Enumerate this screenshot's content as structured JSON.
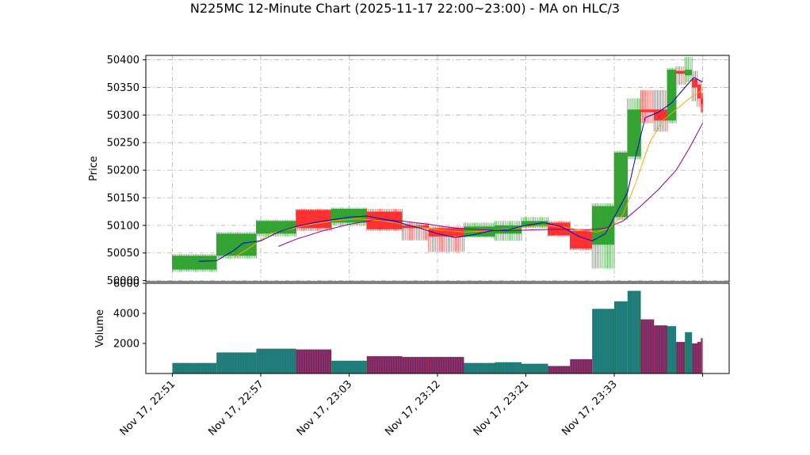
{
  "chart_data": {
    "type": "candlestick",
    "title": "N225MC 12-Minute Chart (2025-11-17 22:00~23:00) - MA on HLC/3",
    "price_panel": {
      "ylabel": "Price",
      "ylim": [
        49998,
        50408
      ],
      "yticks": [
        50000,
        50050,
        50100,
        50150,
        50200,
        50250,
        50300,
        50350,
        50400
      ],
      "grid": true
    },
    "volume_panel": {
      "ylabel": "Volume",
      "ylim": [
        0,
        6000
      ],
      "yticks": [
        2000,
        4000,
        6000
      ],
      "grid": false
    },
    "xlim": [
      -3,
      63
    ],
    "xticks": [
      {
        "pos": 0,
        "label": "Nov 17, 22:51"
      },
      {
        "pos": 10,
        "label": "Nov 17, 22:57"
      },
      {
        "pos": 20,
        "label": "Nov 17, 23:03"
      },
      {
        "pos": 30,
        "label": "Nov 17, 23:12"
      },
      {
        "pos": 40,
        "label": "Nov 17, 23:21"
      },
      {
        "pos": 50,
        "label": "Nov 17, 23:33"
      },
      {
        "pos": 60,
        "label": ""
      }
    ],
    "colors": {
      "up": "#2ca02c",
      "down": "#ff2a2a",
      "ma_short": "#0000cc",
      "ma_mid": "#ffa500",
      "ma_long": "#8b008b",
      "vol_up": "#1a7f6a",
      "vol_down": "#8b2252",
      "vol_stripe": "#4a6fd8"
    },
    "candles": [
      {
        "x0": 0,
        "x1": 5,
        "o": 50020,
        "h": 50048,
        "l": 50016,
        "c": 50045,
        "v": 700
      },
      {
        "x0": 5,
        "x1": 9.5,
        "o": 50045,
        "h": 50088,
        "l": 50040,
        "c": 50085,
        "v": 1400
      },
      {
        "x0": 9.5,
        "x1": 14,
        "o": 50085,
        "h": 50110,
        "l": 50080,
        "c": 50108,
        "v": 1650
      },
      {
        "x0": 14,
        "x1": 18,
        "o": 50128,
        "h": 50130,
        "l": 50090,
        "c": 50095,
        "v": 1600
      },
      {
        "x0": 18,
        "x1": 22,
        "o": 50105,
        "h": 50132,
        "l": 50100,
        "c": 50130,
        "v": 850
      },
      {
        "x0": 22,
        "x1": 26,
        "o": 50125,
        "h": 50130,
        "l": 50090,
        "c": 50093,
        "v": 1150
      },
      {
        "x0": 26,
        "x1": 29,
        "o": 50100,
        "h": 50105,
        "l": 50073,
        "c": 50095,
        "v": 1100
      },
      {
        "x0": 29,
        "x1": 33,
        "o": 50095,
        "h": 50098,
        "l": 50052,
        "c": 50080,
        "v": 1100
      },
      {
        "x0": 33,
        "x1": 36.5,
        "o": 50080,
        "h": 50105,
        "l": 50078,
        "c": 50098,
        "v": 700
      },
      {
        "x0": 36.5,
        "x1": 39.5,
        "o": 50085,
        "h": 50108,
        "l": 50072,
        "c": 50100,
        "v": 750
      },
      {
        "x0": 39.5,
        "x1": 42.5,
        "o": 50098,
        "h": 50115,
        "l": 50095,
        "c": 50108,
        "v": 650
      },
      {
        "x0": 42.5,
        "x1": 45,
        "o": 50105,
        "h": 50108,
        "l": 50080,
        "c": 50082,
        "v": 500
      },
      {
        "x0": 45,
        "x1": 47.5,
        "o": 50090,
        "h": 50093,
        "l": 50055,
        "c": 50058,
        "v": 950
      },
      {
        "x0": 47.5,
        "x1": 50,
        "o": 50065,
        "h": 50140,
        "l": 50022,
        "c": 50135,
        "v": 4300
      },
      {
        "x0": 50,
        "x1": 51.5,
        "o": 50115,
        "h": 50235,
        "l": 50110,
        "c": 50232,
        "v": 4800
      },
      {
        "x0": 51.5,
        "x1": 53,
        "o": 50225,
        "h": 50330,
        "l": 50220,
        "c": 50310,
        "v": 5500
      },
      {
        "x0": 53,
        "x1": 54.5,
        "o": 50310,
        "h": 50345,
        "l": 50285,
        "c": 50305,
        "v": 3600
      },
      {
        "x0": 54.5,
        "x1": 56,
        "o": 50310,
        "h": 50345,
        "l": 50270,
        "c": 50290,
        "v": 3200
      },
      {
        "x0": 56,
        "x1": 57,
        "o": 50290,
        "h": 50385,
        "l": 50285,
        "c": 50382,
        "v": 3150
      },
      {
        "x0": 57,
        "x1": 58,
        "o": 50380,
        "h": 50388,
        "l": 50355,
        "c": 50375,
        "v": 2100
      },
      {
        "x0": 58,
        "x1": 58.8,
        "o": 50372,
        "h": 50405,
        "l": 50360,
        "c": 50382,
        "v": 2750
      },
      {
        "x0": 58.8,
        "x1": 59.4,
        "o": 50365,
        "h": 50380,
        "l": 50325,
        "c": 50350,
        "v": 2000
      },
      {
        "x0": 59.4,
        "x1": 59.8,
        "o": 50355,
        "h": 50362,
        "l": 50315,
        "c": 50330,
        "v": 2100
      },
      {
        "x0": 59.8,
        "x1": 60.0,
        "o": 50330,
        "h": 50340,
        "l": 50305,
        "c": 50320,
        "v": 2350
      }
    ],
    "ma_short": [
      [
        3,
        50035
      ],
      [
        5,
        50036
      ],
      [
        7,
        50055
      ],
      [
        8,
        50068
      ],
      [
        10,
        50072
      ],
      [
        12,
        50088
      ],
      [
        14,
        50098
      ],
      [
        16,
        50105
      ],
      [
        18,
        50110
      ],
      [
        20,
        50115
      ],
      [
        22,
        50117
      ],
      [
        25,
        50108
      ],
      [
        28,
        50095
      ],
      [
        30,
        50085
      ],
      [
        32,
        50078
      ],
      [
        34,
        50083
      ],
      [
        36,
        50090
      ],
      [
        38,
        50092
      ],
      [
        40,
        50100
      ],
      [
        42,
        50105
      ],
      [
        44,
        50098
      ],
      [
        46,
        50080
      ],
      [
        47.5,
        50072
      ],
      [
        49,
        50085
      ],
      [
        50,
        50115
      ],
      [
        51.5,
        50160
      ],
      [
        52.5,
        50230
      ],
      [
        53.5,
        50295
      ],
      [
        55,
        50305
      ],
      [
        56.5,
        50322
      ],
      [
        58,
        50350
      ],
      [
        59,
        50368
      ],
      [
        60,
        50360
      ]
    ],
    "ma_mid": [
      [
        7,
        50042
      ],
      [
        9,
        50062
      ],
      [
        11,
        50085
      ],
      [
        13,
        50092
      ],
      [
        15,
        50100
      ],
      [
        18,
        50108
      ],
      [
        21,
        50112
      ],
      [
        24,
        50108
      ],
      [
        27,
        50100
      ],
      [
        30,
        50092
      ],
      [
        33,
        50088
      ],
      [
        36,
        50090
      ],
      [
        39,
        50095
      ],
      [
        42,
        50100
      ],
      [
        44,
        50098
      ],
      [
        46,
        50092
      ],
      [
        48,
        50088
      ],
      [
        49.5,
        50095
      ],
      [
        51,
        50120
      ],
      [
        52.5,
        50180
      ],
      [
        54,
        50250
      ],
      [
        55.5,
        50290
      ],
      [
        57,
        50310
      ],
      [
        58.5,
        50330
      ],
      [
        59.5,
        50340
      ],
      [
        60,
        50348
      ]
    ],
    "ma_long": [
      [
        12,
        50062
      ],
      [
        14,
        50075
      ],
      [
        17,
        50090
      ],
      [
        20,
        50102
      ],
      [
        23,
        50110
      ],
      [
        26,
        50108
      ],
      [
        29,
        50102
      ],
      [
        32,
        50095
      ],
      [
        35,
        50092
      ],
      [
        38,
        50090
      ],
      [
        41,
        50092
      ],
      [
        44,
        50093
      ],
      [
        47,
        50092
      ],
      [
        49,
        50095
      ],
      [
        51,
        50108
      ],
      [
        53,
        50135
      ],
      [
        55,
        50165
      ],
      [
        57,
        50200
      ],
      [
        58.5,
        50240
      ],
      [
        60,
        50285
      ]
    ]
  }
}
